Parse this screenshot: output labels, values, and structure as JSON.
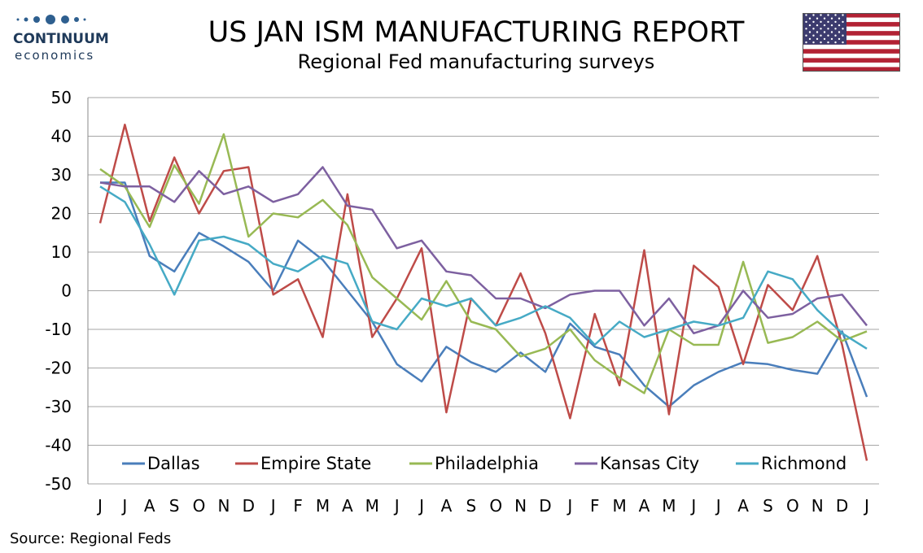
{
  "header": {
    "logo_name": "CONTINUUM",
    "logo_sub": "economics",
    "title": "US JAN ISM MANUFACTURING REPORT",
    "subtitle": "Regional Fed manufacturing surveys"
  },
  "footer": {
    "source": "Source: Regional Feds"
  },
  "colors": {
    "Dallas": "#4a7ebb",
    "Empire State": "#be4b48",
    "Philadelphia": "#98b954",
    "Kansas City": "#7d60a0",
    "Richmond": "#46aac5",
    "grid": "#a6a6a6",
    "flag_red": "#b22234",
    "flag_blue": "#3c3b6e"
  },
  "chart_data": {
    "type": "line",
    "title": "",
    "xlabel": "",
    "ylabel": "",
    "ylim": [
      -50,
      50
    ],
    "yticks": [
      50,
      40,
      30,
      20,
      10,
      0,
      -10,
      -20,
      -30,
      -40,
      -50
    ],
    "grid": true,
    "legend_position": "bottom-inside",
    "categories": [
      "J",
      "J",
      "A",
      "S",
      "O",
      "N",
      "D",
      "J",
      "F",
      "M",
      "A",
      "M",
      "J",
      "J",
      "A",
      "S",
      "O",
      "N",
      "D",
      "J",
      "F",
      "M",
      "A",
      "M",
      "J",
      "J",
      "A",
      "S",
      "O",
      "N",
      "D",
      "J"
    ],
    "series": [
      {
        "name": "Dallas",
        "values": [
          28,
          28,
          9,
          5,
          15,
          11.5,
          7.5,
          0,
          13,
          8,
          0,
          -8,
          -19,
          -23.5,
          -14.5,
          -18.5,
          -21,
          -16,
          -21,
          -8.5,
          -14.5,
          -16.5,
          -24.5,
          -30,
          -24.5,
          -21,
          -18.5,
          -19,
          -20.5,
          -21.5,
          -10.5,
          -27.5
        ]
      },
      {
        "name": "Empire State",
        "values": [
          17.5,
          43,
          18,
          34.5,
          20,
          31,
          32,
          -1,
          3,
          -12,
          25,
          -12,
          -2,
          11,
          -31.5,
          -2,
          -9,
          4.5,
          -11,
          -33,
          -6,
          -24.5,
          10.5,
          -32,
          6.5,
          1,
          -19,
          1.5,
          -5,
          9,
          -14,
          -44
        ]
      },
      {
        "name": "Philadelphia",
        "values": [
          31.5,
          27,
          16.5,
          32.5,
          22.5,
          40.5,
          14,
          20,
          19,
          23.5,
          17,
          3.5,
          -2,
          -7.5,
          2.5,
          -8,
          -10,
          -17,
          -15,
          -10,
          -18,
          -22.5,
          -26.5,
          -10,
          -14,
          -14,
          7.5,
          -13.5,
          -12,
          -8,
          -13,
          -10.5
        ]
      },
      {
        "name": "Kansas City",
        "values": [
          28,
          27,
          27,
          23,
          31,
          25,
          27,
          23,
          25,
          32,
          22,
          21,
          11,
          13,
          5,
          4,
          -2,
          -2,
          -4.5,
          -1,
          0,
          0,
          -9,
          -2,
          -11,
          -9,
          0,
          -7,
          -6,
          -2,
          -1,
          -9
        ]
      },
      {
        "name": "Richmond",
        "values": [
          27,
          23,
          12,
          -1,
          13,
          14,
          12,
          7,
          5,
          9,
          7,
          -8,
          -10,
          -2,
          -4,
          -2,
          -9,
          -7,
          -4,
          -7,
          -14,
          -8,
          -12,
          -10,
          -8,
          -9,
          -7,
          5,
          3,
          -5,
          -11,
          -15
        ]
      }
    ]
  }
}
